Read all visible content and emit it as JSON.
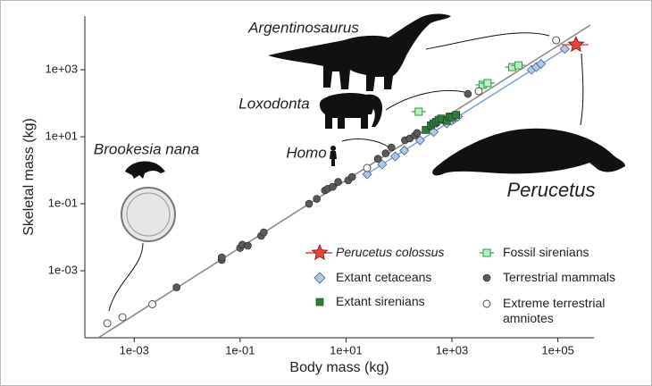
{
  "chart_data": {
    "type": "scatter",
    "x_label": "Body mass (kg)",
    "y_label": "Skeletal mass (kg)",
    "log_x": true,
    "log_y": true,
    "xlim": [
      0.000117,
      480000
    ],
    "ylim": [
      1e-05,
      40000
    ],
    "xticks": [
      {
        "value": 0.001,
        "label": "1e-03"
      },
      {
        "value": 0.1,
        "label": "1e-01"
      },
      {
        "value": 10,
        "label": "1e+01"
      },
      {
        "value": 1000,
        "label": "1e+03"
      },
      {
        "value": 100000,
        "label": "1e+05"
      }
    ],
    "yticks": [
      {
        "value": 0.001,
        "label": "1e-03"
      },
      {
        "value": 0.1,
        "label": "1e-01"
      },
      {
        "value": 10,
        "label": "1e+01"
      },
      {
        "value": 1000,
        "label": "1e+03"
      }
    ],
    "fit_lines": [
      {
        "color": "#8c8c8c",
        "x": [
          0.00021,
          407000
        ],
        "y": [
          1e-05,
          21400
        ]
      },
      {
        "color": "#7fa9d4",
        "x": [
          24.5,
          135000
        ],
        "y": [
          0.76,
          4070
        ]
      }
    ],
    "annotations": [
      "Argentinosaurus",
      "Loxodonta",
      "Homo",
      "Brookesia nana",
      "Perucetus"
    ],
    "series": [
      {
        "name": "Terrestrial mammals",
        "marker": "circle",
        "color": "#5a5a5a",
        "x": [
          0.0063,
          0.045,
          0.045,
          0.1,
          0.11,
          0.14,
          0.25,
          0.28,
          2.0,
          2.8,
          4.0,
          4.5,
          5.6,
          7.1,
          11,
          13,
          40,
          56,
          72,
          130,
          160,
          200,
          220,
          320,
          400,
          500,
          710,
          2000
        ],
        "y": [
          0.00032,
          0.0021,
          0.0025,
          0.0048,
          0.006,
          0.0056,
          0.011,
          0.014,
          0.1,
          0.14,
          0.25,
          0.28,
          0.32,
          0.45,
          0.5,
          0.63,
          2.2,
          3.2,
          4.8,
          7.9,
          8.9,
          11,
          13,
          16,
          20,
          25,
          32,
          190
        ]
      },
      {
        "name": "Extant cetaceans",
        "marker": "diamond",
        "color": "#aec8ea",
        "x": [
          25,
          48,
          85,
          126,
          250,
          450,
          800,
          980,
          1100,
          1300,
          32000,
          39000,
          48000,
          135000
        ],
        "y": [
          0.76,
          1.5,
          2.6,
          3.9,
          7.8,
          14,
          25,
          30,
          34,
          40,
          1000,
          1200,
          1500,
          4200
        ]
      },
      {
        "name": "Extant sirenians",
        "marker": "square",
        "color": "#2e7d3a",
        "x": [
          320,
          400,
          450,
          500,
          560,
          630,
          800,
          900,
          1000,
          1200
        ],
        "y": [
          16,
          22,
          25,
          28,
          32,
          35,
          30,
          40,
          38,
          45
        ]
      },
      {
        "name": "Fossil sirenians",
        "marker": "square-open",
        "color": "#2e9a4a",
        "x": [
          235,
          3800,
          4700,
          13800,
          18000
        ],
        "y": [
          56,
          355,
          400,
          1200,
          1350
        ]
      },
      {
        "name": "Extreme terrestrial amniotes",
        "marker": "open-circle",
        "color": "#444444",
        "x": [
          0.00031,
          0.0006,
          0.0022,
          25,
          3200,
          93000
        ],
        "y": [
          2.7e-05,
          4.1e-05,
          0.0001,
          1.17,
          230,
          7600
        ]
      },
      {
        "name": "Perucetus colossus",
        "marker": "star",
        "color": "#e8423a",
        "x": [
          220000
        ],
        "y": [
          5600
        ]
      }
    ]
  }
}
